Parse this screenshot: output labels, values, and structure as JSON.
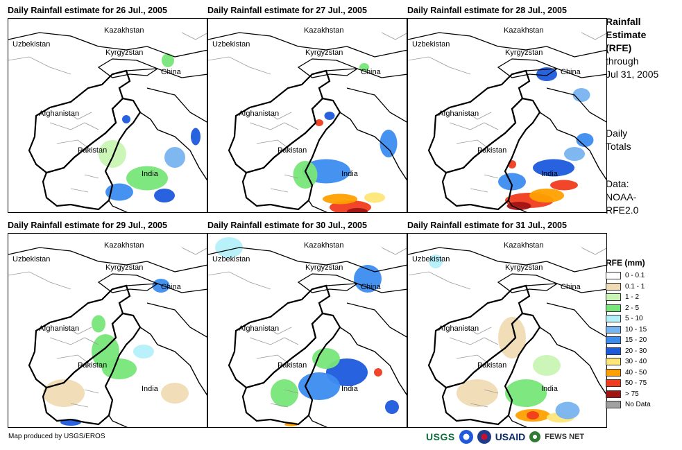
{
  "panels": [
    {
      "title": "Daily Rainfall estimate for 26 Jul., 2005"
    },
    {
      "title": "Daily Rainfall estimate for 27 Jul., 2005"
    },
    {
      "title": "Daily Rainfall estimate for 28 Jul., 2005"
    },
    {
      "title": "Daily Rainfall estimate for 29 Jul., 2005"
    },
    {
      "title": "Daily Rainfall estimate for 30 Jul., 2005"
    },
    {
      "title": "Daily Rainfall estimate for 31 Jul., 2005"
    }
  ],
  "map_labels": {
    "kazakhstan": "Kazakhstan",
    "uzbekistan": "Uzbekistan",
    "kyrgyzstan": "Kyrgyzstan",
    "china": "China",
    "afghanistan": "Afghanistan",
    "pakistan": "Pakistan",
    "india": "India"
  },
  "sidebar": {
    "title_line1": "Rainfall",
    "title_line2": "Estimate",
    "title_line3": "(RFE)",
    "through": "through",
    "date": "Jul 31, 2005",
    "daily": "Daily",
    "totals": "Totals",
    "data_label": "Data:",
    "data_source1": "NOAA-",
    "data_source2": "RFE2.0"
  },
  "legend": {
    "title": "RFE (mm)",
    "items": [
      {
        "label": "0 - 0.1",
        "color": "#ffffff"
      },
      {
        "label": "0.1 - 1",
        "color": "#f0dcb4"
      },
      {
        "label": "1 - 2",
        "color": "#c8f5b4"
      },
      {
        "label": "2 - 5",
        "color": "#78e678"
      },
      {
        "label": "5 - 10",
        "color": "#b4f0fa"
      },
      {
        "label": "10 - 15",
        "color": "#78b4f0"
      },
      {
        "label": "15 - 20",
        "color": "#3c8cf0"
      },
      {
        "label": "20 - 30",
        "color": "#1e5adc"
      },
      {
        "label": "30 - 40",
        "color": "#ffe678"
      },
      {
        "label": "40 - 50",
        "color": "#ffa000"
      },
      {
        "label": "50 - 75",
        "color": "#f03c1e"
      },
      {
        "label": "> 75",
        "color": "#a01414"
      },
      {
        "label": "No Data",
        "color": "#a0a0a0"
      }
    ]
  },
  "credit": "Map produced by USGS/EROS",
  "logos": {
    "usgs": "USGS",
    "usaid": "USAID",
    "fews": "FEWS NET"
  }
}
